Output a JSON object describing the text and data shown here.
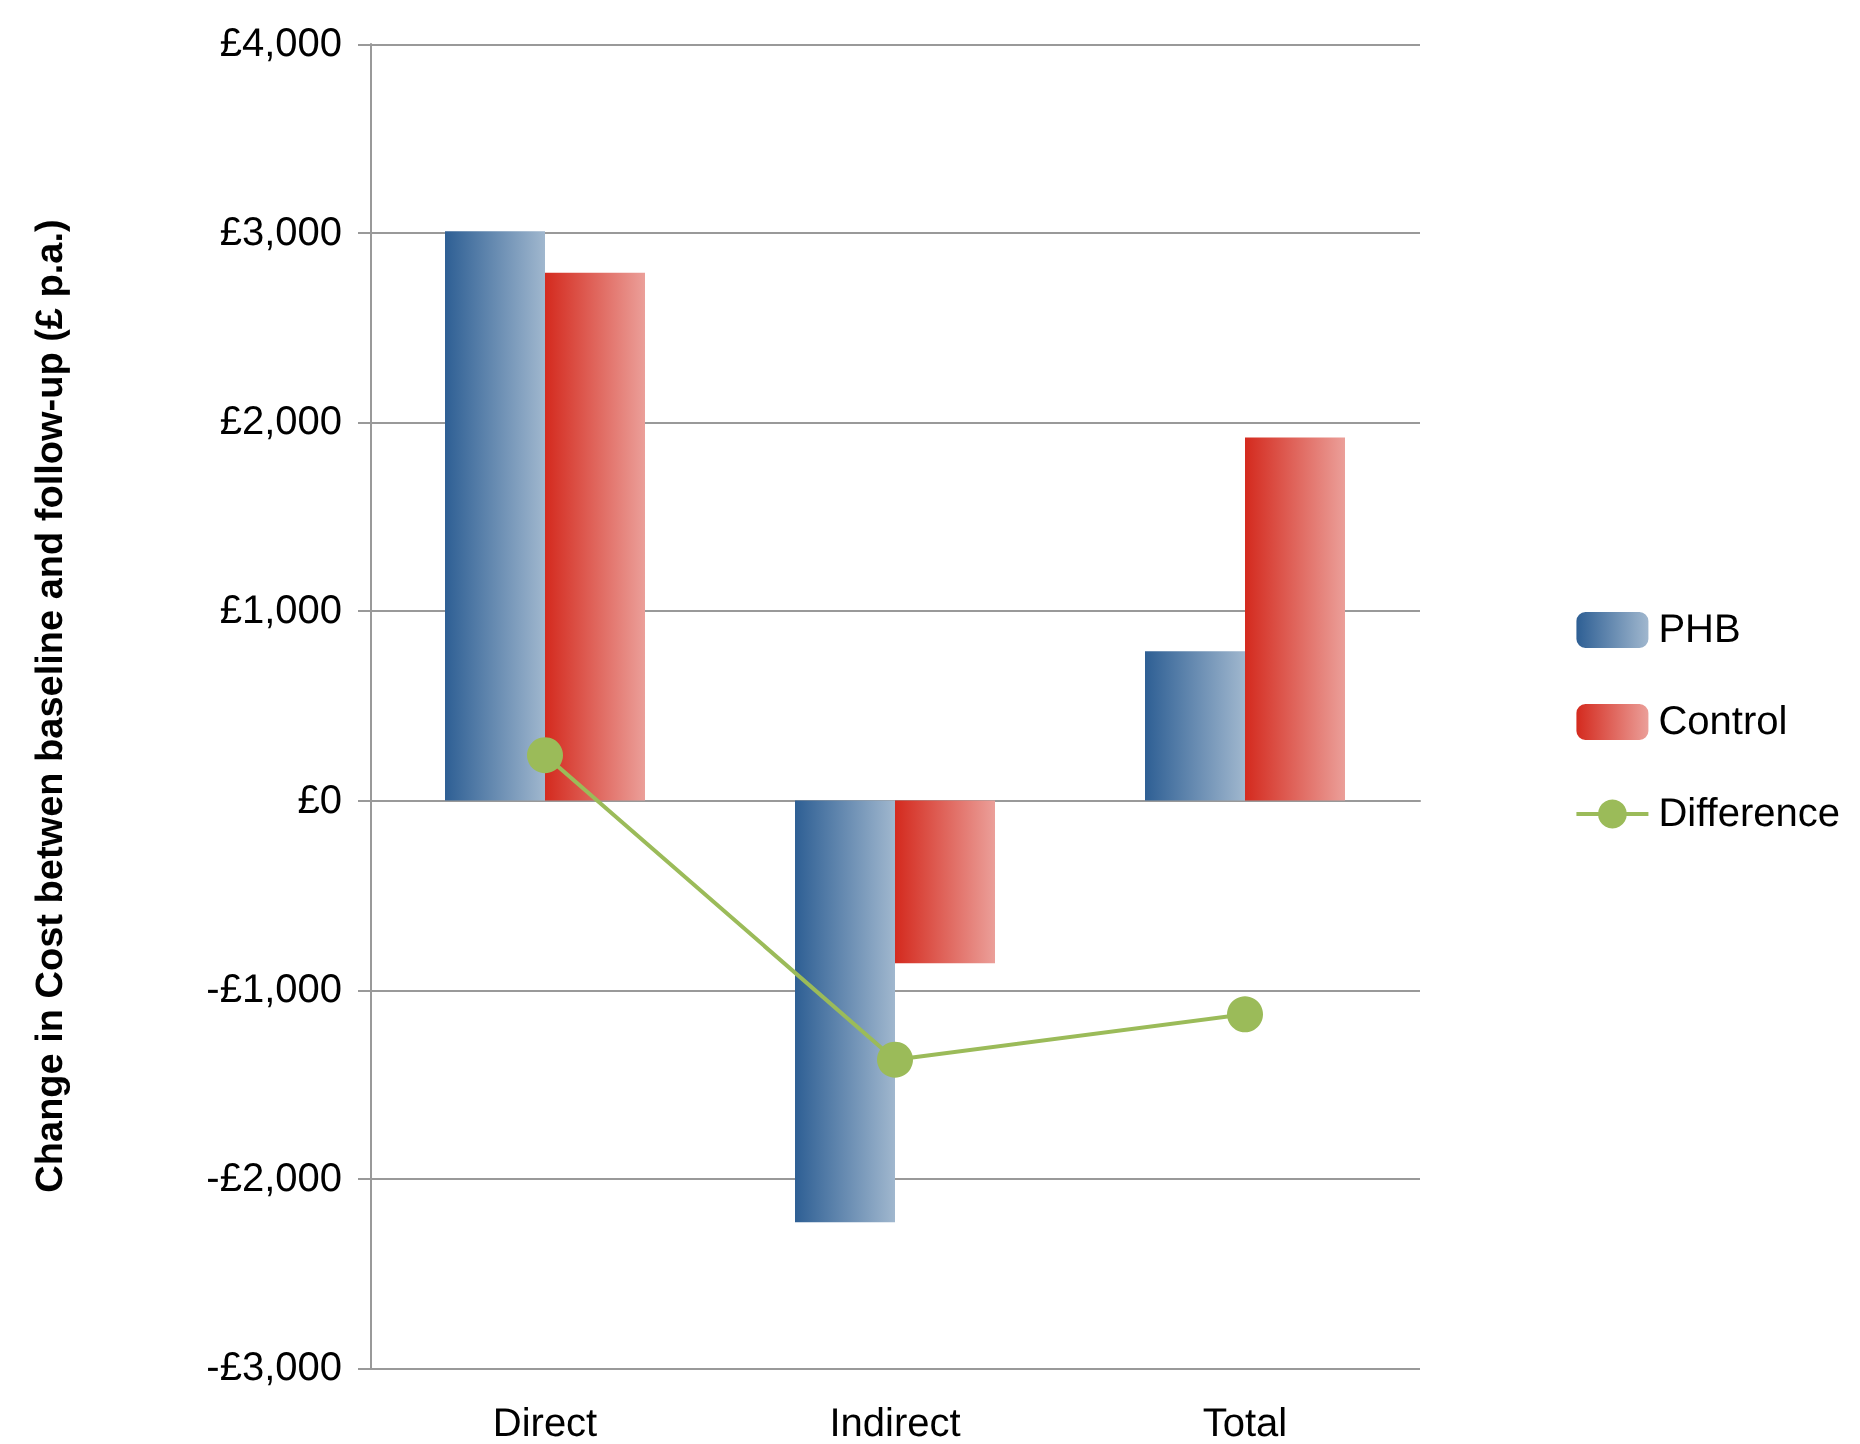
{
  "chart_data": {
    "type": "bar",
    "ylabel": "Change in Cost betwen baseline and follow-up (£ p.a.)",
    "categories": [
      "Direct",
      "Indirect",
      "Total"
    ],
    "series": [
      {
        "name": "PHB",
        "color": "#2e5f94",
        "values": [
          3010,
          -2230,
          790
        ]
      },
      {
        "name": "Control",
        "color": "#d42a1e",
        "values": [
          2790,
          -860,
          1920
        ]
      },
      {
        "name": "Difference",
        "type": "line",
        "color": "#9bbb59",
        "values": [
          240,
          -1370,
          -1130
        ],
        "marker": "circle"
      }
    ],
    "ylim": [
      -3000,
      4000
    ],
    "yticks": [
      {
        "value": -3000,
        "label": "-£3,000"
      },
      {
        "value": -2000,
        "label": "-£2,000"
      },
      {
        "value": -1000,
        "label": "-£1,000"
      },
      {
        "value": 0,
        "label": "£0"
      },
      {
        "value": 1000,
        "label": "£1,000"
      },
      {
        "value": 2000,
        "label": "£2,000"
      },
      {
        "value": 3000,
        "label": "£3,000"
      },
      {
        "value": 4000,
        "label": "£4,000"
      }
    ],
    "grid": "y",
    "legend": "right"
  }
}
